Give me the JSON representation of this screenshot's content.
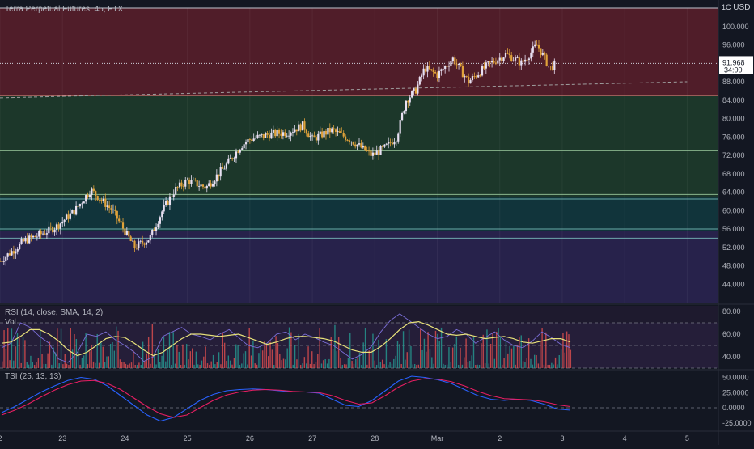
{
  "symbol_title": "Terra Perpetual Futures, 45, FTX",
  "currency": "USD",
  "currency_prefix": "1C",
  "last_price": "91.968",
  "countdown": "34:00",
  "rsi_legend": "RSI (14, close, SMA, 14, 2)",
  "vol_legend": "Vol",
  "tsi_legend": "TSI (25, 13, 13)",
  "colors": {
    "background": "#131722",
    "zone_red": "#5c1f2a",
    "zone_green": "#1f3d2c",
    "zone_teal": "#123a3f",
    "zone_purple": "#2c2452",
    "up_candle": "#e8e0f2",
    "down_candle": "#e0a23a",
    "rsi_line": "#7b6fd8",
    "rsi_ma": "#e8e27a",
    "tsi_line": "#2962ff",
    "tsi_signal": "#e91e63",
    "vol_up": "#26a69a",
    "vol_down": "#ef5350"
  },
  "chart_data": [
    {
      "type": "candlestick",
      "title": "Terra Perpetual Futures, 45, FTX",
      "ylim": [
        40,
        104
      ],
      "yticks": [
        44,
        48,
        52,
        56,
        60,
        64,
        68,
        72,
        76,
        80,
        84,
        88,
        92,
        96,
        100
      ],
      "ytick_labels": [
        "44.000",
        "48.000",
        "52.000",
        "56.000",
        "60.000",
        "64.000",
        "68.000",
        "72.000",
        "76.000",
        "80.000",
        "84.000",
        "88.000",
        "92.000",
        "96.000",
        "100.000"
      ],
      "x_tick_labels": [
        "2",
        "23",
        "24",
        "25",
        "26",
        "27",
        "28",
        "Mar",
        "2",
        "3",
        "4",
        "5"
      ],
      "x_tick_days": [
        22,
        23,
        24,
        25,
        26,
        27,
        28,
        29,
        30,
        31,
        32,
        33
      ],
      "x_range_days": [
        22,
        33.5
      ],
      "last_price": 91.968,
      "close_path": [
        {
          "d": 22.0,
          "p": 49.0
        },
        {
          "d": 22.4,
          "p": 53.5
        },
        {
          "d": 22.6,
          "p": 54.5
        },
        {
          "d": 22.9,
          "p": 56.5
        },
        {
          "d": 23.2,
          "p": 60.0
        },
        {
          "d": 23.45,
          "p": 64.5
        },
        {
          "d": 23.8,
          "p": 60.0
        },
        {
          "d": 24.0,
          "p": 55.5
        },
        {
          "d": 24.15,
          "p": 52.0
        },
        {
          "d": 24.4,
          "p": 54.0
        },
        {
          "d": 24.6,
          "p": 60.0
        },
        {
          "d": 24.8,
          "p": 64.5
        },
        {
          "d": 25.0,
          "p": 66.5
        },
        {
          "d": 25.3,
          "p": 65.0
        },
        {
          "d": 25.6,
          "p": 69.5
        },
        {
          "d": 25.85,
          "p": 74.0
        },
        {
          "d": 26.0,
          "p": 75.5
        },
        {
          "d": 26.3,
          "p": 76.5
        },
        {
          "d": 26.6,
          "p": 77.0
        },
        {
          "d": 26.85,
          "p": 78.5
        },
        {
          "d": 27.0,
          "p": 75.5
        },
        {
          "d": 27.3,
          "p": 77.5
        },
        {
          "d": 27.6,
          "p": 75.5
        },
        {
          "d": 27.95,
          "p": 72.0
        },
        {
          "d": 28.15,
          "p": 73.5
        },
        {
          "d": 28.35,
          "p": 76.0
        },
        {
          "d": 28.5,
          "p": 84.0
        },
        {
          "d": 28.65,
          "p": 86.0
        },
        {
          "d": 28.8,
          "p": 91.0
        },
        {
          "d": 29.0,
          "p": 89.5
        },
        {
          "d": 29.25,
          "p": 93.0
        },
        {
          "d": 29.5,
          "p": 88.0
        },
        {
          "d": 29.8,
          "p": 91.5
        },
        {
          "d": 30.1,
          "p": 94.0
        },
        {
          "d": 30.35,
          "p": 92.0
        },
        {
          "d": 30.6,
          "p": 96.0
        },
        {
          "d": 30.8,
          "p": 91.0
        },
        {
          "d": 30.9,
          "p": 91.968
        }
      ],
      "zones": [
        {
          "name": "red",
          "from": 85.0,
          "to": 104.0
        },
        {
          "name": "green",
          "from": 63.0,
          "to": 85.0
        },
        {
          "name": "teal",
          "from": 55.5,
          "to": 63.0
        },
        {
          "name": "purple",
          "from": 40.0,
          "to": 55.5
        }
      ],
      "horizontal_lines": [
        73.0,
        63.5,
        62.5,
        56.0,
        54.0
      ],
      "trendline": {
        "from": {
          "d": 22.0,
          "p": 84.5
        },
        "to": {
          "d": 33.0,
          "p": 88.0
        }
      }
    },
    {
      "type": "line",
      "title": "RSI (14, close, SMA, 14, 2)",
      "ylim": [
        30,
        85
      ],
      "yticks": [
        40,
        60,
        80
      ],
      "ytick_labels": [
        "40.00",
        "60.00",
        "80.00"
      ],
      "bands": [
        30,
        50,
        70
      ],
      "series": [
        {
          "name": "RSI",
          "values": [
            48,
            52,
            70,
            66,
            58,
            52,
            38,
            35,
            44,
            60,
            58,
            62,
            55,
            50,
            44,
            36,
            40,
            58,
            62,
            66,
            60,
            58,
            55,
            60,
            64,
            57,
            50,
            48,
            52,
            60,
            62,
            55,
            60,
            57,
            53,
            50,
            44,
            38,
            42,
            49,
            62,
            72,
            78,
            72,
            66,
            60,
            56,
            58,
            64,
            60,
            52,
            57,
            62,
            55,
            50,
            48,
            54,
            62,
            57,
            51,
            48
          ]
        },
        {
          "name": "RSI-based MA",
          "values": [
            52,
            53,
            58,
            64,
            64,
            60,
            54,
            46,
            41,
            44,
            50,
            56,
            58,
            57,
            52,
            46,
            41,
            44,
            50,
            56,
            60,
            60,
            59,
            58,
            59,
            60,
            57,
            54,
            51,
            53,
            56,
            58,
            58,
            57,
            56,
            54,
            50,
            46,
            44,
            44,
            49,
            56,
            64,
            70,
            71,
            68,
            64,
            60,
            59,
            60,
            58,
            56,
            57,
            58,
            56,
            53,
            52,
            54,
            56,
            56,
            53
          ]
        }
      ]
    },
    {
      "type": "bar",
      "title": "Vol",
      "note": "volume histogram overlaid on RSI pane, no values printed"
    },
    {
      "type": "line",
      "title": "TSI (25, 13, 13)",
      "ylim": [
        -32,
        60
      ],
      "yticks": [
        -25,
        0,
        25,
        50
      ],
      "ytick_labels": [
        "-25.0000",
        "0.0000",
        "25.0000",
        "50.0000"
      ],
      "series": [
        {
          "name": "TSI",
          "values": [
            -8,
            2,
            14,
            26,
            36,
            45,
            50,
            47,
            36,
            20,
            4,
            -12,
            -22,
            -16,
            -2,
            12,
            22,
            28,
            30,
            31,
            30,
            28,
            26,
            26,
            24,
            14,
            4,
            2,
            12,
            28,
            44,
            52,
            50,
            46,
            40,
            30,
            20,
            14,
            12,
            14,
            12,
            6,
            -2,
            -4
          ]
        },
        {
          "name": "Signal",
          "values": [
            -12,
            -4,
            6,
            18,
            29,
            38,
            44,
            45,
            40,
            30,
            16,
            2,
            -10,
            -16,
            -12,
            0,
            12,
            21,
            26,
            29,
            30,
            29,
            27,
            26,
            25,
            20,
            12,
            6,
            8,
            20,
            34,
            44,
            48,
            47,
            43,
            36,
            27,
            20,
            15,
            14,
            13,
            10,
            5,
            2
          ]
        }
      ]
    }
  ]
}
